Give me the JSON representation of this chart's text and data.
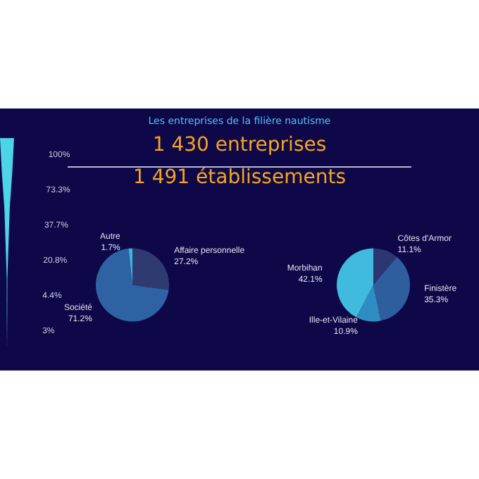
{
  "chart_data": [
    {
      "type": "other",
      "values": [
        100,
        73.3,
        37.7,
        20.8,
        4.4,
        3
      ],
      "value_labels": [
        "100%",
        "73.3%",
        "37.7%",
        "20.8%",
        "4.4%",
        "3%"
      ],
      "color": "#4dd4e6"
    },
    {
      "type": "pie",
      "title": "Les entreprises de la filière nautisme",
      "annotations": [
        "1 430 entreprises",
        "1 491 établissements"
      ],
      "categories": [
        "Affaire personnelle",
        "Société",
        "Autre"
      ],
      "values": [
        27.2,
        71.2,
        1.7
      ],
      "value_labels": [
        "27.2%",
        "71.2%",
        "1.7%"
      ],
      "colors": [
        "#2f3b70",
        "#2e62a3",
        "#3ab4dc"
      ]
    },
    {
      "type": "pie",
      "categories": [
        "Côtes d'Armor",
        "Finistère",
        "Ille-et-Vilaine",
        "Morbihan"
      ],
      "values": [
        11.1,
        35.3,
        10.9,
        42.1
      ],
      "value_labels": [
        "11.1%",
        "35.3%",
        "10.9%",
        "42.1%"
      ],
      "colors": [
        "#2c3671",
        "#2e5e9e",
        "#2e8dc2",
        "#41bbdd"
      ]
    }
  ]
}
